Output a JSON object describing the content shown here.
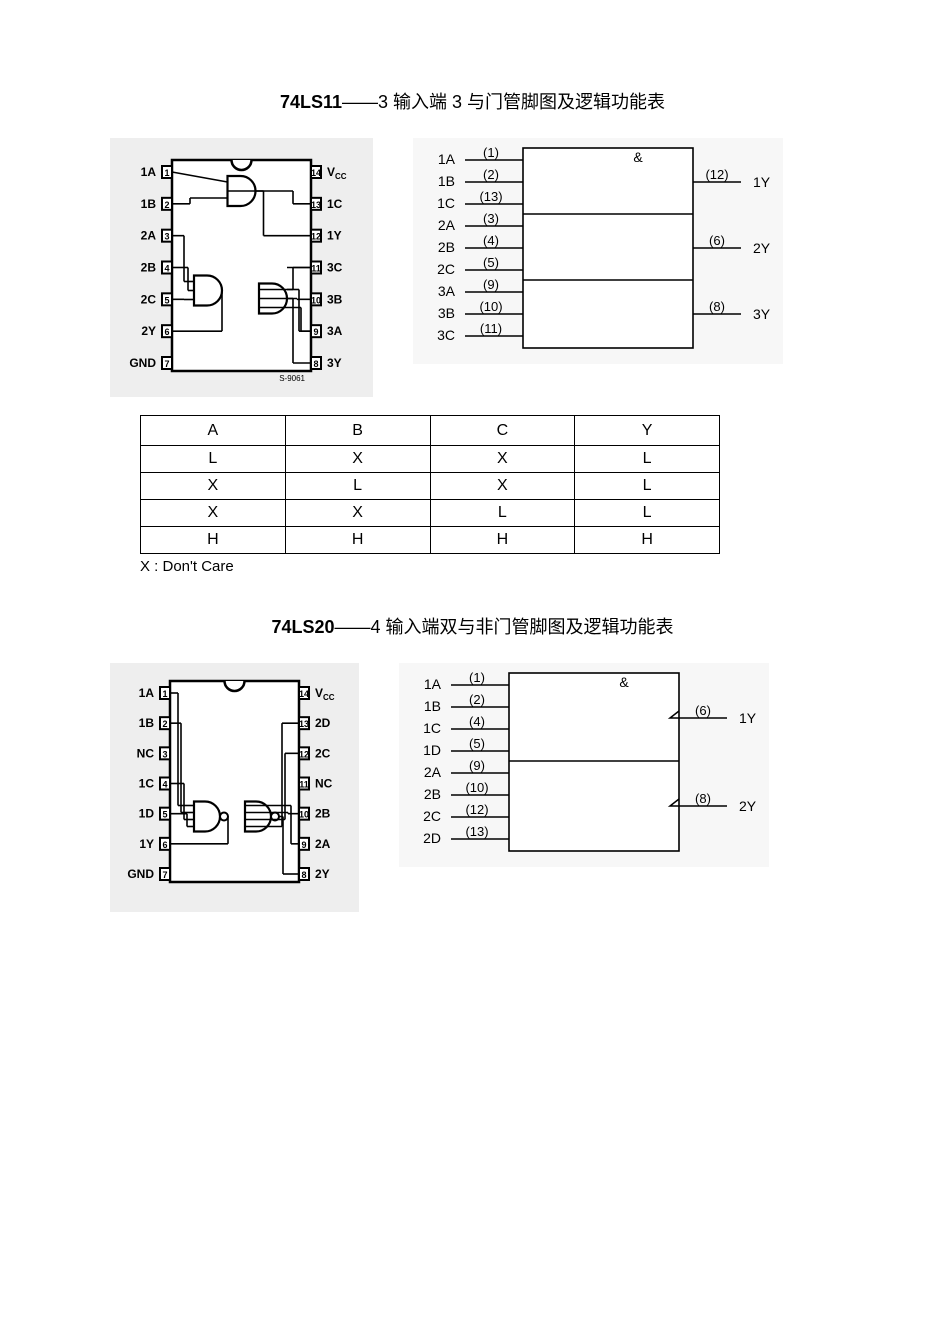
{
  "section1": {
    "title_bold": "74LS11",
    "title_rest": "——3 输入端 3 与门管脚图及逻辑功能表",
    "chip": {
      "bg": "#eeeeee",
      "body_stroke": "#000000",
      "body_fill": "#ffffff",
      "left_pins": [
        {
          "num": "1",
          "label": "1A"
        },
        {
          "num": "2",
          "label": "1B"
        },
        {
          "num": "3",
          "label": "2A"
        },
        {
          "num": "4",
          "label": "2B"
        },
        {
          "num": "5",
          "label": "2C"
        },
        {
          "num": "6",
          "label": "2Y"
        },
        {
          "num": "7",
          "label": "GND"
        }
      ],
      "right_pins": [
        {
          "num": "14",
          "label": "V",
          "sub": "CC"
        },
        {
          "num": "13",
          "label": "1C"
        },
        {
          "num": "12",
          "label": "1Y"
        },
        {
          "num": "11",
          "label": "3C"
        },
        {
          "num": "10",
          "label": "3B"
        },
        {
          "num": "9",
          "label": "3A"
        },
        {
          "num": "8",
          "label": "3Y"
        }
      ],
      "footer": "S-9061"
    },
    "logic": {
      "symbol_label": "&",
      "groups": [
        {
          "inputs": [
            {
              "name": "1A",
              "pin": "(1)"
            },
            {
              "name": "1B",
              "pin": "(2)"
            },
            {
              "name": "1C",
              "pin": "(13)"
            }
          ],
          "out": {
            "pin": "(12)",
            "name": "1Y"
          }
        },
        {
          "inputs": [
            {
              "name": "2A",
              "pin": "(3)"
            },
            {
              "name": "2B",
              "pin": "(4)"
            },
            {
              "name": "2C",
              "pin": "(5)"
            }
          ],
          "out": {
            "pin": "(6)",
            "name": "2Y"
          }
        },
        {
          "inputs": [
            {
              "name": "3A",
              "pin": "(9)"
            },
            {
              "name": "3B",
              "pin": "(10)"
            },
            {
              "name": "3C",
              "pin": "(11)"
            }
          ],
          "out": {
            "pin": "(8)",
            "name": "3Y"
          }
        }
      ],
      "box_stroke": "#000000",
      "bg": "#f7f7f7"
    },
    "truth": {
      "columns": [
        "A",
        "B",
        "C",
        "Y"
      ],
      "rows": [
        [
          "L",
          "X",
          "X",
          "L"
        ],
        [
          "X",
          "L",
          "X",
          "L"
        ],
        [
          "X",
          "X",
          "L",
          "L"
        ],
        [
          "H",
          "H",
          "H",
          "H"
        ]
      ],
      "note": "X : Don't Care"
    }
  },
  "section2": {
    "title_bold": "74LS20",
    "title_rest": "——4 输入端双与非门管脚图及逻辑功能表",
    "chip": {
      "bg": "#eeeeee",
      "left_pins": [
        {
          "num": "1",
          "label": "1A"
        },
        {
          "num": "2",
          "label": "1B"
        },
        {
          "num": "3",
          "label": "NC"
        },
        {
          "num": "4",
          "label": "1C"
        },
        {
          "num": "5",
          "label": "1D"
        },
        {
          "num": "6",
          "label": "1Y"
        },
        {
          "num": "7",
          "label": "GND"
        }
      ],
      "right_pins": [
        {
          "num": "14",
          "label": "V",
          "sub": "CC"
        },
        {
          "num": "13",
          "label": "2D"
        },
        {
          "num": "12",
          "label": "2C"
        },
        {
          "num": "11",
          "label": "NC"
        },
        {
          "num": "10",
          "label": "2B"
        },
        {
          "num": "9",
          "label": "2A"
        },
        {
          "num": "8",
          "label": "2Y"
        }
      ]
    },
    "logic": {
      "symbol_label": "&",
      "groups": [
        {
          "inputs": [
            {
              "name": "1A",
              "pin": "(1)"
            },
            {
              "name": "1B",
              "pin": "(2)"
            },
            {
              "name": "1C",
              "pin": "(4)"
            },
            {
              "name": "1D",
              "pin": "(5)"
            }
          ],
          "out": {
            "pin": "(6)",
            "name": "1Y"
          }
        },
        {
          "inputs": [
            {
              "name": "2A",
              "pin": "(9)"
            },
            {
              "name": "2B",
              "pin": "(10)"
            },
            {
              "name": "2C",
              "pin": "(12)"
            },
            {
              "name": "2D",
              "pin": "(13)"
            }
          ],
          "out": {
            "pin": "(8)",
            "name": "2Y"
          }
        }
      ],
      "inverted": true,
      "bg": "#f7f7f7"
    }
  }
}
